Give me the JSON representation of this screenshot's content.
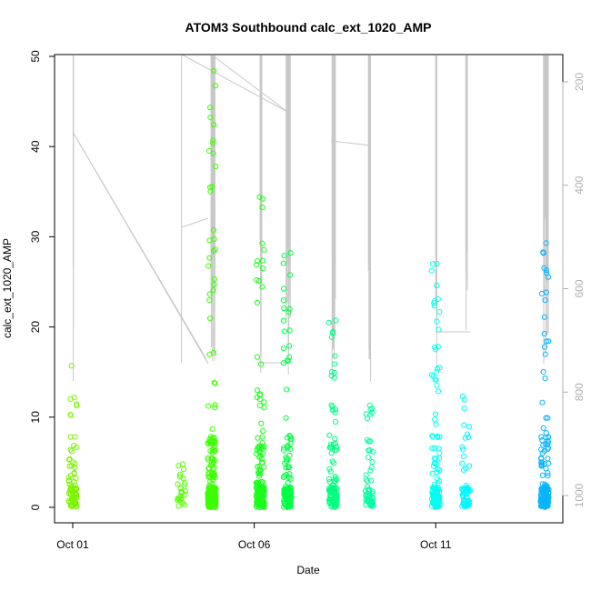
{
  "chart_data": {
    "type": "scatter",
    "title": "ATOM3 Southbound calc_ext_1020_AMP",
    "xlabel": "Date",
    "ylabel": "calc_ext_1020_AMP",
    "x_ticks": [
      "Oct 01",
      "Oct 06",
      "Oct 11"
    ],
    "y_ticks": [
      "0",
      "10",
      "20",
      "30",
      "40",
      "50"
    ],
    "y2_ticks": [
      "200",
      "400",
      "600",
      "800",
      "1000"
    ],
    "ylim": [
      0,
      50
    ],
    "y2lim": [
      1000,
      150
    ],
    "xlim": [
      "2017-09-30T12:00",
      "2017-10-14T12:00"
    ],
    "grid": false,
    "colors": {
      "series_gradient": [
        "#7fff00",
        "#00ff33",
        "#00ffcc",
        "#00ffff",
        "#00aaff"
      ],
      "depth_line": "#c8c8c8"
    },
    "series": [
      {
        "x": "2017-10-01T00:00",
        "y_max": 15.7,
        "color": "#7cf400"
      },
      {
        "x": "2017-10-04T00:00",
        "y_max": 4.8,
        "color": "#55ff00"
      },
      {
        "x": "2017-10-04T20:00",
        "y_max": 48.4,
        "color": "#3cff00"
      },
      {
        "x": "2017-10-06T04:00",
        "y_max": 34.4,
        "color": "#1aff1a"
      },
      {
        "x": "2017-10-06T22:00",
        "y_max": 28.2,
        "color": "#00ff44"
      },
      {
        "x": "2017-10-08T04:00",
        "y_max": 20.7,
        "color": "#00ff80"
      },
      {
        "x": "2017-10-09T04:00",
        "y_max": 11.3,
        "color": "#00ffa0"
      },
      {
        "x": "2017-10-11T00:00",
        "y_max": 27.0,
        "color": "#00fff0"
      },
      {
        "x": "2017-10-11T20:00",
        "y_max": 12.3,
        "color": "#00f8ff"
      },
      {
        "x": "2017-10-14T00:00",
        "y_max": 29.3,
        "color": "#0ab4ff"
      }
    ]
  }
}
